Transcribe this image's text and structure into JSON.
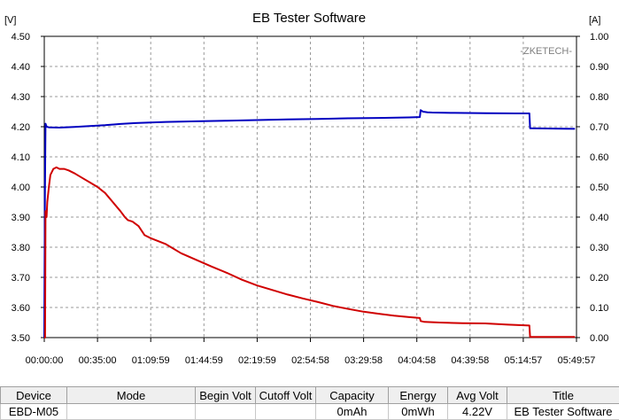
{
  "chart_data": {
    "type": "line",
    "title": "EB Tester Software",
    "watermark": "-ZKETECH-",
    "y_left_unit": "[V]",
    "y_right_unit": "[A]",
    "y_left_ticks": [
      "4.50",
      "4.40",
      "4.30",
      "4.20",
      "4.10",
      "4.00",
      "3.90",
      "3.80",
      "3.70",
      "3.60",
      "3.50"
    ],
    "y_right_ticks": [
      "1.00",
      "0.90",
      "0.80",
      "0.70",
      "0.60",
      "0.50",
      "0.40",
      "0.30",
      "0.20",
      "0.10",
      "0.00"
    ],
    "x_ticks": [
      "00:00:00",
      "00:35:00",
      "01:09:59",
      "01:44:59",
      "02:19:59",
      "02:54:58",
      "03:29:58",
      "04:04:58",
      "04:39:58",
      "05:14:57",
      "05:49:57"
    ],
    "xlim_minutes": [
      0,
      350
    ],
    "ylim_left": [
      3.5,
      4.5
    ],
    "ylim_right": [
      0.0,
      1.0
    ],
    "grid": true,
    "series": [
      {
        "axis": "left",
        "color": "#0000c0",
        "points": [
          [
            0,
            3.5
          ],
          [
            0.4,
            3.96
          ],
          [
            0.8,
            4.21
          ],
          [
            1.5,
            4.2
          ],
          [
            3,
            4.198
          ],
          [
            10,
            4.197
          ],
          [
            20,
            4.199
          ],
          [
            30,
            4.202
          ],
          [
            40,
            4.205
          ],
          [
            50,
            4.209
          ],
          [
            60,
            4.212
          ],
          [
            80,
            4.216
          ],
          [
            100,
            4.218
          ],
          [
            120,
            4.22
          ],
          [
            140,
            4.222
          ],
          [
            160,
            4.224
          ],
          [
            180,
            4.226
          ],
          [
            200,
            4.228
          ],
          [
            220,
            4.229
          ],
          [
            240,
            4.231
          ],
          [
            247,
            4.232
          ],
          [
            247.5,
            4.255
          ],
          [
            249,
            4.25
          ],
          [
            252,
            4.248
          ],
          [
            255,
            4.247
          ],
          [
            270,
            4.246
          ],
          [
            290,
            4.245
          ],
          [
            310,
            4.244
          ],
          [
            319,
            4.244
          ],
          [
            319.5,
            4.195
          ],
          [
            330,
            4.194
          ],
          [
            349,
            4.193
          ]
        ]
      },
      {
        "axis": "right",
        "color": "#d00000",
        "points": [
          [
            0,
            0.0
          ],
          [
            0.5,
            0.0
          ],
          [
            0.8,
            0.42
          ],
          [
            1.5,
            0.4
          ],
          [
            2,
            0.45
          ],
          [
            3,
            0.5
          ],
          [
            4,
            0.54
          ],
          [
            6,
            0.56
          ],
          [
            8,
            0.565
          ],
          [
            10,
            0.56
          ],
          [
            13,
            0.56
          ],
          [
            16,
            0.555
          ],
          [
            20,
            0.545
          ],
          [
            25,
            0.53
          ],
          [
            30,
            0.515
          ],
          [
            35,
            0.5
          ],
          [
            40,
            0.48
          ],
          [
            45,
            0.45
          ],
          [
            50,
            0.42
          ],
          [
            53,
            0.4
          ],
          [
            55,
            0.39
          ],
          [
            58,
            0.385
          ],
          [
            62,
            0.37
          ],
          [
            66,
            0.34
          ],
          [
            70,
            0.33
          ],
          [
            75,
            0.32
          ],
          [
            80,
            0.31
          ],
          [
            90,
            0.28
          ],
          [
            100,
            0.258
          ],
          [
            110,
            0.236
          ],
          [
            120,
            0.215
          ],
          [
            130,
            0.192
          ],
          [
            140,
            0.173
          ],
          [
            150,
            0.158
          ],
          [
            160,
            0.143
          ],
          [
            170,
            0.13
          ],
          [
            180,
            0.118
          ],
          [
            190,
            0.105
          ],
          [
            200,
            0.095
          ],
          [
            210,
            0.086
          ],
          [
            220,
            0.079
          ],
          [
            230,
            0.073
          ],
          [
            240,
            0.068
          ],
          [
            247,
            0.065
          ],
          [
            247.5,
            0.055
          ],
          [
            250,
            0.052
          ],
          [
            260,
            0.05
          ],
          [
            275,
            0.048
          ],
          [
            290,
            0.047
          ],
          [
            305,
            0.043
          ],
          [
            319,
            0.04
          ],
          [
            319.5,
            0.002
          ],
          [
            349,
            0.002
          ]
        ]
      }
    ]
  },
  "table": {
    "headers": [
      "Device",
      "Mode",
      "Begin Volt",
      "Cutoff Volt",
      "Capacity",
      "Energy",
      "Avg Volt",
      "Title"
    ],
    "rows": [
      [
        "EBD-M05",
        "",
        "",
        "",
        "0mAh",
        "0mWh",
        "4.22V",
        "EB Tester Software"
      ]
    ]
  }
}
